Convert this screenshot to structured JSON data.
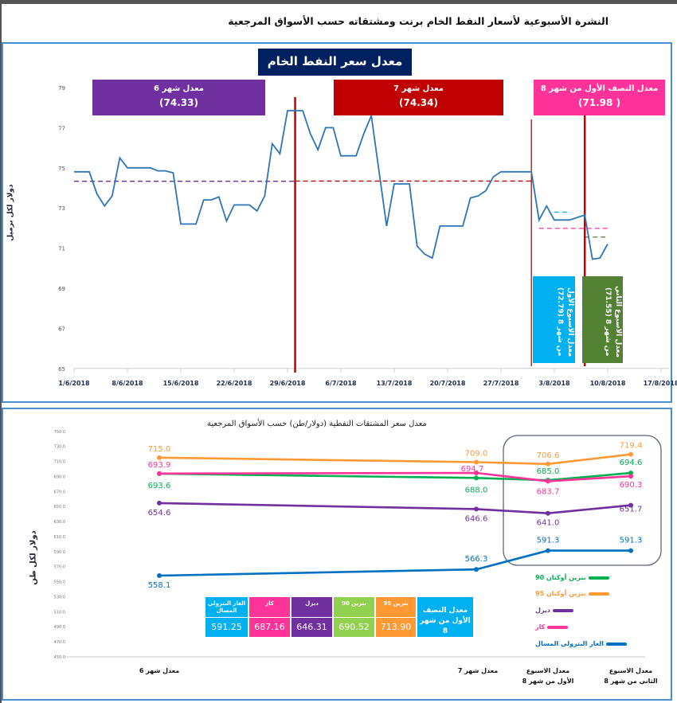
{
  "header": {
    "title": "النشرة الأسبوعية  لأسعار النفط الخام برنت ومشتقاته حسب الأسواق المرجعية"
  },
  "colors": {
    "brent_line": "#2e75b6",
    "month6": "#7030a0",
    "month7": "#c00000",
    "half8": "#ff3399",
    "week1": "#00b0f0",
    "week2": "#548235",
    "title_bg": "#002060",
    "octane90": "#00b050",
    "octane95": "#ff9933",
    "diesel": "#7030a0",
    "kerosene": "#ff3399",
    "lpg": "#0070c0",
    "table_g90": "#92d050"
  },
  "chart_data": [
    {
      "type": "line",
      "title": "معدل سعر النفط الخام  برنت",
      "ylabel": "دولار لكل برميل",
      "ylim": [
        65,
        79
      ],
      "yticks": [
        65,
        67,
        69,
        71,
        73,
        75,
        77,
        79
      ],
      "xlim": [
        "2018-06-01",
        "2018-08-17"
      ],
      "xtick_labels": [
        "1/6/2018",
        "8/6/2018",
        "15/6/2018",
        "22/6/2018",
        "29/6/2018",
        "6/7/2018",
        "13/7/2018",
        "20/7/2018",
        "27/7/2018",
        "3/8/2018",
        "10/8/2018",
        "17/8/2018"
      ],
      "grid": false,
      "series": [
        {
          "values": [
            [
              "2018-06-01",
              74.8
            ],
            [
              "2018-06-03",
              74.8
            ],
            [
              "2018-06-04",
              73.7
            ],
            [
              "2018-06-05",
              73.1
            ],
            [
              "2018-06-06",
              73.6
            ],
            [
              "2018-06-07",
              75.5
            ],
            [
              "2018-06-08",
              75.0
            ],
            [
              "2018-06-11",
              75.0
            ],
            [
              "2018-06-12",
              74.85
            ],
            [
              "2018-06-13",
              74.85
            ],
            [
              "2018-06-14",
              74.75
            ],
            [
              "2018-06-15",
              72.2
            ],
            [
              "2018-06-17",
              72.2
            ],
            [
              "2018-06-18",
              73.4
            ],
            [
              "2018-06-19",
              73.4
            ],
            [
              "2018-06-20",
              73.55
            ],
            [
              "2018-06-21",
              72.35
            ],
            [
              "2018-06-22",
              73.15
            ],
            [
              "2018-06-24",
              73.15
            ],
            [
              "2018-06-25",
              72.85
            ],
            [
              "2018-06-26",
              73.6
            ],
            [
              "2018-06-27",
              76.2
            ],
            [
              "2018-06-28",
              75.7
            ],
            [
              "2018-06-29",
              77.85
            ],
            [
              "2018-07-01",
              77.85
            ],
            [
              "2018-07-02",
              76.7
            ],
            [
              "2018-07-03",
              75.9
            ],
            [
              "2018-07-04",
              77.0
            ],
            [
              "2018-07-05",
              77.0
            ],
            [
              "2018-07-06",
              75.6
            ],
            [
              "2018-07-08",
              75.6
            ],
            [
              "2018-07-09",
              76.7
            ],
            [
              "2018-07-10",
              77.6
            ],
            [
              "2018-07-12",
              72.1
            ],
            [
              "2018-07-13",
              74.2
            ],
            [
              "2018-07-15",
              74.2
            ],
            [
              "2018-07-16",
              71.1
            ],
            [
              "2018-07-17",
              70.7
            ],
            [
              "2018-07-18",
              70.5
            ],
            [
              "2018-07-19",
              72.1
            ],
            [
              "2018-07-22",
              72.1
            ],
            [
              "2018-07-23",
              73.5
            ],
            [
              "2018-07-24",
              73.6
            ],
            [
              "2018-07-25",
              73.85
            ],
            [
              "2018-07-26",
              74.55
            ],
            [
              "2018-07-27",
              74.8
            ],
            [
              "2018-07-31",
              74.8
            ],
            [
              "2018-08-01",
              72.4
            ],
            [
              "2018-08-02",
              73.1
            ],
            [
              "2018-08-03",
              72.4
            ],
            [
              "2018-08-05",
              72.4
            ],
            [
              "2018-08-07",
              72.65
            ],
            [
              "2018-08-08",
              70.45
            ],
            [
              "2018-08-09",
              70.5
            ],
            [
              "2018-08-10",
              71.2
            ]
          ]
        }
      ],
      "averages": [
        {
          "value": 74.33,
          "from": "2018-06-01",
          "to": "2018-06-30",
          "color": "#7030a0"
        },
        {
          "value": 74.34,
          "from": "2018-06-30",
          "to": "2018-07-31",
          "color": "#c00000"
        },
        {
          "value": 71.98,
          "from": "2018-08-01",
          "to": "2018-08-10",
          "color": "#ff3399"
        },
        {
          "value": 72.79,
          "from": "2018-08-03",
          "to": "2018-08-05",
          "color": "#00b0f0"
        },
        {
          "value": 71.55,
          "from": "2018-08-07",
          "to": "2018-08-10",
          "color": "#548235"
        }
      ],
      "markers": [
        "2018-06-30",
        "2018-07-31",
        "2018-08-07"
      ],
      "annotations": {
        "month6": {
          "label": "معدل شهر 6",
          "value": "(74.33)"
        },
        "month7": {
          "label": "معدل شهر 7",
          "value": "(74.34)"
        },
        "half8": {
          "label": "معدل النصف الأول من شهر 8",
          "value": "( 71.98)"
        },
        "week1": {
          "label": "معدل الاسبوع الأول من شهر 8 (72.79)"
        },
        "week2": {
          "label": "معدل الاسبوع الثاني من شهر 8 (71.55)"
        }
      }
    },
    {
      "type": "line",
      "title": "معدل سعر المشتقات النفطية (دولار/طن) حسب الأسواق المرجعية",
      "ylabel": "دولار لكل طن",
      "ylim": [
        450,
        750
      ],
      "yticks": [
        450,
        470,
        490,
        510,
        530,
        550,
        570,
        590,
        610,
        630,
        650,
        670,
        690,
        710,
        730,
        750
      ],
      "categories": [
        "معدل شهر 6",
        "معدل شهر 7",
        "معدل الاسبوع الأول من شهر 8",
        "معدل الاسبوع الثاني من شهر 8"
      ],
      "legend_position": "right",
      "series": [
        {
          "name": "بنزين أوكتان 90",
          "key": "octane90",
          "values": [
            693.6,
            688.0,
            685.0,
            694.6
          ]
        },
        {
          "name": "بنزين أوكتان 95",
          "key": "octane95",
          "values": [
            715.0,
            709.0,
            706.6,
            719.4
          ]
        },
        {
          "name": "ديزل",
          "key": "diesel",
          "values": [
            654.6,
            646.6,
            641.0,
            651.7
          ]
        },
        {
          "name": "كاز",
          "key": "kerosene",
          "values": [
            693.9,
            694.7,
            683.7,
            690.3
          ]
        },
        {
          "name": "الغاز البترولي المسال",
          "key": "lpg",
          "values": [
            558.1,
            566.3,
            591.3,
            591.3
          ]
        }
      ],
      "summary_table": {
        "title": "معدل النصف الأول من شهر 8",
        "columns": [
          {
            "header": "بنزين 95",
            "value": "713.90",
            "color": "#ff9933"
          },
          {
            "header": "بنزين 90",
            "value": "690.52",
            "color": "#92d050"
          },
          {
            "header": "ديزل",
            "value": "646.31",
            "color": "#7030a0"
          },
          {
            "header": "كاز",
            "value": "687.16",
            "color": "#ff3399"
          },
          {
            "header": "الغاز البترولي المسال",
            "value": "591.25",
            "color": "#00b0f0"
          }
        ]
      }
    }
  ]
}
